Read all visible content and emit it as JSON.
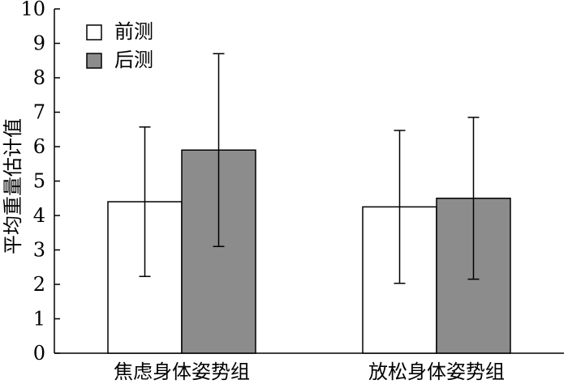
{
  "chart_data": {
    "type": "bar",
    "categories": [
      "焦虑身体姿势组",
      "放松身体姿势组"
    ],
    "series": [
      {
        "name": "前测",
        "values": [
          4.4,
          4.25
        ],
        "error": [
          2.17,
          2.22
        ],
        "color": "#ffffff"
      },
      {
        "name": "后测",
        "values": [
          5.9,
          4.5
        ],
        "error": [
          2.8,
          2.35
        ],
        "color": "#8c8c8c"
      }
    ],
    "title": "",
    "xlabel": "",
    "ylabel": "平均重量估计值",
    "ylim": [
      0,
      10
    ],
    "yticks": [
      0,
      1,
      2,
      3,
      4,
      5,
      6,
      7,
      8,
      9,
      10
    ],
    "legend_position": "top-left",
    "grid": false
  }
}
